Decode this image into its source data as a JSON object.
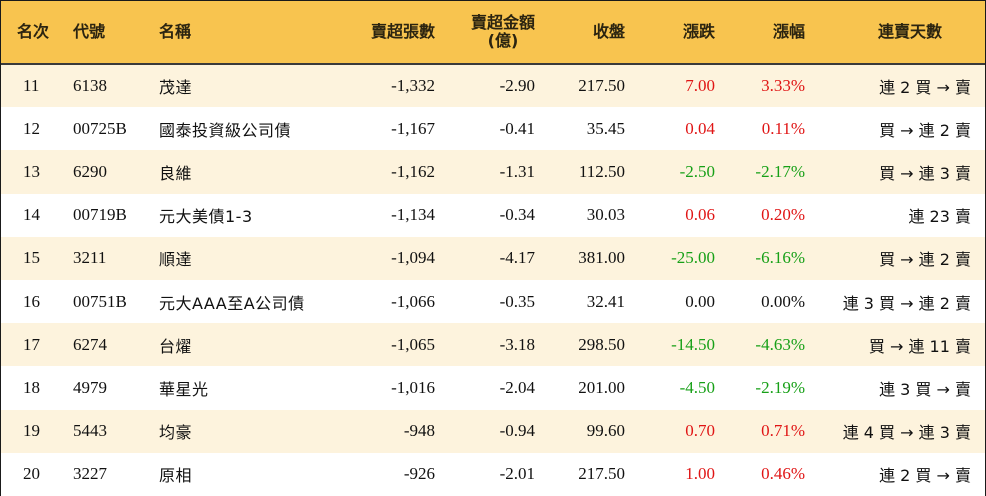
{
  "table": {
    "headers": {
      "rank": "名次",
      "code": "代號",
      "name": "名稱",
      "net_sell_shares": "賣超張數",
      "net_sell_amount_line1": "賣超金額",
      "net_sell_amount_line2": "(億)",
      "close": "收盤",
      "change": "漲跌",
      "change_pct": "漲幅",
      "streak": "連賣天數"
    },
    "colors": {
      "header_bg": "#f8c44f",
      "row_alt_bg": "#fdf3dd",
      "up": "#e01414",
      "down": "#17a017"
    },
    "rows": [
      {
        "rank": "11",
        "code": "6138",
        "name": "茂達",
        "shares": "-1,332",
        "amount": "-2.90",
        "close": "217.50",
        "change": "7.00",
        "pct": "3.33%",
        "dir": "up",
        "streak": "連 2 買 → 賣"
      },
      {
        "rank": "12",
        "code": "00725B",
        "name": "國泰投資級公司債",
        "shares": "-1,167",
        "amount": "-0.41",
        "close": "35.45",
        "change": "0.04",
        "pct": "0.11%",
        "dir": "up",
        "streak": "買 → 連 2 賣"
      },
      {
        "rank": "13",
        "code": "6290",
        "name": "良維",
        "shares": "-1,162",
        "amount": "-1.31",
        "close": "112.50",
        "change": "-2.50",
        "pct": "-2.17%",
        "dir": "down",
        "streak": "買 → 連 3 賣"
      },
      {
        "rank": "14",
        "code": "00719B",
        "name": "元大美債1-3",
        "shares": "-1,134",
        "amount": "-0.34",
        "close": "30.03",
        "change": "0.06",
        "pct": "0.20%",
        "dir": "up",
        "streak": "連 23 賣"
      },
      {
        "rank": "15",
        "code": "3211",
        "name": "順達",
        "shares": "-1,094",
        "amount": "-4.17",
        "close": "381.00",
        "change": "-25.00",
        "pct": "-6.16%",
        "dir": "down",
        "streak": "買 → 連 2 賣"
      },
      {
        "rank": "16",
        "code": "00751B",
        "name": "元大AAA至A公司債",
        "shares": "-1,066",
        "amount": "-0.35",
        "close": "32.41",
        "change": "0.00",
        "pct": "0.00%",
        "dir": "flat",
        "streak": "連 3 買 → 連 2 賣"
      },
      {
        "rank": "17",
        "code": "6274",
        "name": "台燿",
        "shares": "-1,065",
        "amount": "-3.18",
        "close": "298.50",
        "change": "-14.50",
        "pct": "-4.63%",
        "dir": "down",
        "streak": "買 → 連 11 賣"
      },
      {
        "rank": "18",
        "code": "4979",
        "name": "華星光",
        "shares": "-1,016",
        "amount": "-2.04",
        "close": "201.00",
        "change": "-4.50",
        "pct": "-2.19%",
        "dir": "down",
        "streak": "連 3 買 → 賣"
      },
      {
        "rank": "19",
        "code": "5443",
        "name": "均豪",
        "shares": "-948",
        "amount": "-0.94",
        "close": "99.60",
        "change": "0.70",
        "pct": "0.71%",
        "dir": "up",
        "streak": "連 4 買 → 連 3 賣"
      },
      {
        "rank": "20",
        "code": "3227",
        "name": "原相",
        "shares": "-926",
        "amount": "-2.01",
        "close": "217.50",
        "change": "1.00",
        "pct": "0.46%",
        "dir": "up",
        "streak": "連 2 買 → 賣"
      }
    ]
  }
}
